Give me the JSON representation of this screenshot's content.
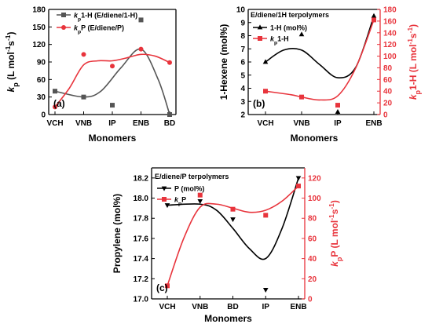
{
  "chart_data": [
    {
      "panel": "(a)",
      "type": "scatter",
      "categories": [
        "VCH",
        "VNB",
        "IP",
        "ENB",
        "BD"
      ],
      "xlabel": "Monomers",
      "ylabel": "kp (L mol-1s-1)",
      "ylabel_parts": [
        [
          "k",
          "main"
        ],
        [
          "p",
          "sub"
        ],
        [
          " (L mol",
          "main"
        ],
        [
          "-1",
          "sup"
        ],
        [
          "s",
          "main"
        ],
        [
          "-1",
          "sup"
        ],
        [
          ")",
          "main"
        ]
      ],
      "ylim": [
        0,
        180
      ],
      "yticks": [
        0,
        30,
        60,
        90,
        120,
        150,
        180
      ],
      "legend_position": "top-left",
      "series": [
        {
          "name": "kp1-H (E/diene/1-H)",
          "name_parts": [
            [
              "k",
              "main"
            ],
            [
              "p",
              "sub"
            ],
            [
              "1-H (E/diene/1-H)",
              "main"
            ]
          ],
          "color": "#555555",
          "marker": "square",
          "axis": "left",
          "points": [
            [
              0,
              40
            ],
            [
              1,
              30
            ],
            [
              2,
              16
            ],
            [
              3,
              162
            ],
            [
              4,
              0
            ]
          ]
        },
        {
          "name": "kpP (E/diene/P)",
          "name_parts": [
            [
              "k",
              "main"
            ],
            [
              "p",
              "sub"
            ],
            [
              "P (E/diene/P)",
              "main"
            ]
          ],
          "color": "#e8343c",
          "marker": "circle",
          "axis": "left",
          "points": [
            [
              0,
              13
            ],
            [
              1,
              103
            ],
            [
              2,
              83
            ],
            [
              3,
              112
            ],
            [
              4,
              89
            ]
          ]
        }
      ]
    },
    {
      "panel": "(b)",
      "type": "scatter",
      "title": "E/diene/1H terpolymers",
      "categories": [
        "VCH",
        "VNB",
        "IP",
        "ENB"
      ],
      "xlabel": "Monomers",
      "ylabel": "1-Hexene (mol%)",
      "ylim": [
        2,
        10
      ],
      "yticks": [
        2,
        3,
        4,
        5,
        6,
        7,
        8,
        9,
        10
      ],
      "y2label": "kp1-H (L mol-1s-1)",
      "y2label_parts": [
        [
          "k",
          "main"
        ],
        [
          "p",
          "sub"
        ],
        [
          "1-H (L mol",
          "main"
        ],
        [
          "-1",
          "sup"
        ],
        [
          "s",
          "main"
        ],
        [
          "-1",
          "sup"
        ],
        [
          ")",
          "main"
        ]
      ],
      "y2lim": [
        0,
        180
      ],
      "y2ticks": [
        0,
        20,
        40,
        60,
        80,
        100,
        120,
        140,
        160,
        180
      ],
      "legend_position": "top-left",
      "series": [
        {
          "name": "1-H (mol%)",
          "name_parts": [
            [
              "1-H (mol%)",
              "main"
            ]
          ],
          "color": "#000000",
          "marker": "triangle-up",
          "axis": "left",
          "points": [
            [
              0,
              6.0
            ],
            [
              1,
              8.1
            ],
            [
              2,
              2.2
            ],
            [
              3,
              9.5
            ]
          ]
        },
        {
          "name": "kp1-H",
          "name_parts": [
            [
              "k",
              "main"
            ],
            [
              "p",
              "sub"
            ],
            [
              "1-H",
              "main"
            ]
          ],
          "color": "#e8343c",
          "marker": "square",
          "axis": "right",
          "points": [
            [
              0,
              40
            ],
            [
              1,
              30
            ],
            [
              2,
              16
            ],
            [
              3,
              162
            ]
          ]
        }
      ]
    },
    {
      "panel": "(c)",
      "type": "scatter",
      "title": "E/diene/P terpolymers",
      "categories": [
        "VCH",
        "VNB",
        "BD",
        "IP",
        "ENB"
      ],
      "xlabel": "Monomers",
      "ylabel": "Propylene (mol%)",
      "ylim": [
        17.0,
        18.3
      ],
      "yticks": [
        17.0,
        17.2,
        17.4,
        17.6,
        17.8,
        18.0,
        18.2
      ],
      "y2label": "kpP (L mol-1s-1)",
      "y2label_parts": [
        [
          "k",
          "main"
        ],
        [
          "p",
          "sub"
        ],
        [
          "P (L mol",
          "main"
        ],
        [
          "-1",
          "sup"
        ],
        [
          "s",
          "main"
        ],
        [
          "-1",
          "sup"
        ],
        [
          ")",
          "main"
        ]
      ],
      "y2lim": [
        0,
        130
      ],
      "y2ticks": [
        0,
        20,
        40,
        60,
        80,
        100,
        120
      ],
      "legend_position": "top-left",
      "series": [
        {
          "name": "P (mol%)",
          "name_parts": [
            [
              "P (mol%)",
              "main"
            ]
          ],
          "color": "#000000",
          "marker": "triangle-down",
          "axis": "left",
          "points": [
            [
              0,
              17.93
            ],
            [
              1,
              17.97
            ],
            [
              2,
              17.79
            ],
            [
              3,
              17.09
            ],
            [
              4,
              18.2
            ]
          ]
        },
        {
          "name": "kpP",
          "name_parts": [
            [
              "k",
              "main"
            ],
            [
              "p",
              "sub"
            ],
            [
              "P",
              "main"
            ]
          ],
          "color": "#e8343c",
          "marker": "square",
          "axis": "right",
          "points": [
            [
              0,
              13
            ],
            [
              1,
              103
            ],
            [
              2,
              89
            ],
            [
              3,
              83
            ],
            [
              4,
              112
            ]
          ]
        }
      ]
    }
  ]
}
